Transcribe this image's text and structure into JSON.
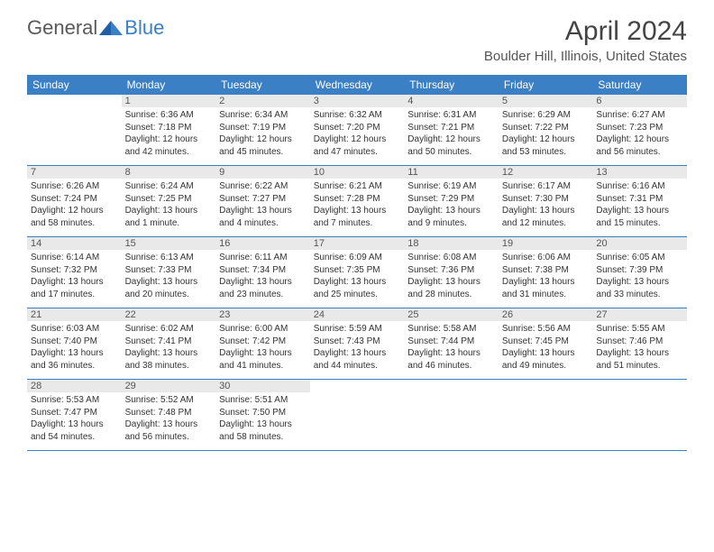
{
  "logo": {
    "general": "General",
    "blue": "Blue"
  },
  "title": "April 2024",
  "location": "Boulder Hill, Illinois, United States",
  "day_names": [
    "Sunday",
    "Monday",
    "Tuesday",
    "Wednesday",
    "Thursday",
    "Friday",
    "Saturday"
  ],
  "colors": {
    "header_bg": "#3b7fc4",
    "header_text": "#ffffff",
    "daynum_bg": "#e9e9e9",
    "text": "#333333",
    "rule": "#3b7fc4"
  },
  "weeks": [
    [
      {
        "n": "",
        "sr": "",
        "ss": "",
        "dl": ""
      },
      {
        "n": "1",
        "sr": "Sunrise: 6:36 AM",
        "ss": "Sunset: 7:18 PM",
        "dl": "Daylight: 12 hours and 42 minutes."
      },
      {
        "n": "2",
        "sr": "Sunrise: 6:34 AM",
        "ss": "Sunset: 7:19 PM",
        "dl": "Daylight: 12 hours and 45 minutes."
      },
      {
        "n": "3",
        "sr": "Sunrise: 6:32 AM",
        "ss": "Sunset: 7:20 PM",
        "dl": "Daylight: 12 hours and 47 minutes."
      },
      {
        "n": "4",
        "sr": "Sunrise: 6:31 AM",
        "ss": "Sunset: 7:21 PM",
        "dl": "Daylight: 12 hours and 50 minutes."
      },
      {
        "n": "5",
        "sr": "Sunrise: 6:29 AM",
        "ss": "Sunset: 7:22 PM",
        "dl": "Daylight: 12 hours and 53 minutes."
      },
      {
        "n": "6",
        "sr": "Sunrise: 6:27 AM",
        "ss": "Sunset: 7:23 PM",
        "dl": "Daylight: 12 hours and 56 minutes."
      }
    ],
    [
      {
        "n": "7",
        "sr": "Sunrise: 6:26 AM",
        "ss": "Sunset: 7:24 PM",
        "dl": "Daylight: 12 hours and 58 minutes."
      },
      {
        "n": "8",
        "sr": "Sunrise: 6:24 AM",
        "ss": "Sunset: 7:25 PM",
        "dl": "Daylight: 13 hours and 1 minute."
      },
      {
        "n": "9",
        "sr": "Sunrise: 6:22 AM",
        "ss": "Sunset: 7:27 PM",
        "dl": "Daylight: 13 hours and 4 minutes."
      },
      {
        "n": "10",
        "sr": "Sunrise: 6:21 AM",
        "ss": "Sunset: 7:28 PM",
        "dl": "Daylight: 13 hours and 7 minutes."
      },
      {
        "n": "11",
        "sr": "Sunrise: 6:19 AM",
        "ss": "Sunset: 7:29 PM",
        "dl": "Daylight: 13 hours and 9 minutes."
      },
      {
        "n": "12",
        "sr": "Sunrise: 6:17 AM",
        "ss": "Sunset: 7:30 PM",
        "dl": "Daylight: 13 hours and 12 minutes."
      },
      {
        "n": "13",
        "sr": "Sunrise: 6:16 AM",
        "ss": "Sunset: 7:31 PM",
        "dl": "Daylight: 13 hours and 15 minutes."
      }
    ],
    [
      {
        "n": "14",
        "sr": "Sunrise: 6:14 AM",
        "ss": "Sunset: 7:32 PM",
        "dl": "Daylight: 13 hours and 17 minutes."
      },
      {
        "n": "15",
        "sr": "Sunrise: 6:13 AM",
        "ss": "Sunset: 7:33 PM",
        "dl": "Daylight: 13 hours and 20 minutes."
      },
      {
        "n": "16",
        "sr": "Sunrise: 6:11 AM",
        "ss": "Sunset: 7:34 PM",
        "dl": "Daylight: 13 hours and 23 minutes."
      },
      {
        "n": "17",
        "sr": "Sunrise: 6:09 AM",
        "ss": "Sunset: 7:35 PM",
        "dl": "Daylight: 13 hours and 25 minutes."
      },
      {
        "n": "18",
        "sr": "Sunrise: 6:08 AM",
        "ss": "Sunset: 7:36 PM",
        "dl": "Daylight: 13 hours and 28 minutes."
      },
      {
        "n": "19",
        "sr": "Sunrise: 6:06 AM",
        "ss": "Sunset: 7:38 PM",
        "dl": "Daylight: 13 hours and 31 minutes."
      },
      {
        "n": "20",
        "sr": "Sunrise: 6:05 AM",
        "ss": "Sunset: 7:39 PM",
        "dl": "Daylight: 13 hours and 33 minutes."
      }
    ],
    [
      {
        "n": "21",
        "sr": "Sunrise: 6:03 AM",
        "ss": "Sunset: 7:40 PM",
        "dl": "Daylight: 13 hours and 36 minutes."
      },
      {
        "n": "22",
        "sr": "Sunrise: 6:02 AM",
        "ss": "Sunset: 7:41 PM",
        "dl": "Daylight: 13 hours and 38 minutes."
      },
      {
        "n": "23",
        "sr": "Sunrise: 6:00 AM",
        "ss": "Sunset: 7:42 PM",
        "dl": "Daylight: 13 hours and 41 minutes."
      },
      {
        "n": "24",
        "sr": "Sunrise: 5:59 AM",
        "ss": "Sunset: 7:43 PM",
        "dl": "Daylight: 13 hours and 44 minutes."
      },
      {
        "n": "25",
        "sr": "Sunrise: 5:58 AM",
        "ss": "Sunset: 7:44 PM",
        "dl": "Daylight: 13 hours and 46 minutes."
      },
      {
        "n": "26",
        "sr": "Sunrise: 5:56 AM",
        "ss": "Sunset: 7:45 PM",
        "dl": "Daylight: 13 hours and 49 minutes."
      },
      {
        "n": "27",
        "sr": "Sunrise: 5:55 AM",
        "ss": "Sunset: 7:46 PM",
        "dl": "Daylight: 13 hours and 51 minutes."
      }
    ],
    [
      {
        "n": "28",
        "sr": "Sunrise: 5:53 AM",
        "ss": "Sunset: 7:47 PM",
        "dl": "Daylight: 13 hours and 54 minutes."
      },
      {
        "n": "29",
        "sr": "Sunrise: 5:52 AM",
        "ss": "Sunset: 7:48 PM",
        "dl": "Daylight: 13 hours and 56 minutes."
      },
      {
        "n": "30",
        "sr": "Sunrise: 5:51 AM",
        "ss": "Sunset: 7:50 PM",
        "dl": "Daylight: 13 hours and 58 minutes."
      },
      {
        "n": "",
        "sr": "",
        "ss": "",
        "dl": ""
      },
      {
        "n": "",
        "sr": "",
        "ss": "",
        "dl": ""
      },
      {
        "n": "",
        "sr": "",
        "ss": "",
        "dl": ""
      },
      {
        "n": "",
        "sr": "",
        "ss": "",
        "dl": ""
      }
    ]
  ]
}
